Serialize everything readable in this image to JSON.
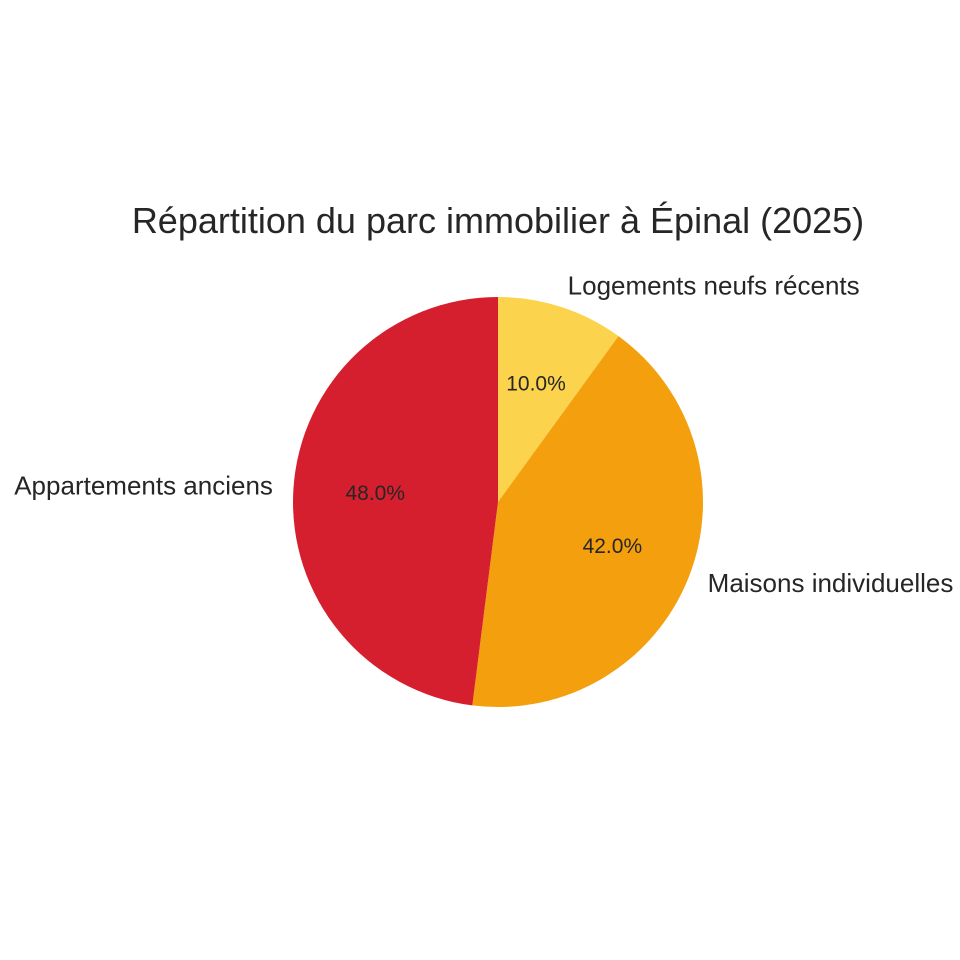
{
  "chart_data": {
    "type": "pie",
    "title": "Répartition du parc immobilier à Épinal (2025)",
    "slices": [
      {
        "label": "Logements neufs récents",
        "value": 10.0,
        "pct_label": "10.0%",
        "color": "#fcd34d"
      },
      {
        "label": "Maisons individuelles",
        "value": 42.0,
        "pct_label": "42.0%",
        "color": "#f39f0e"
      },
      {
        "label": "Appartements anciens",
        "value": 48.0,
        "pct_label": "48.0%",
        "color": "#d51f2e"
      }
    ],
    "start_angle": "top",
    "direction": "clockwise",
    "legend": "none"
  }
}
